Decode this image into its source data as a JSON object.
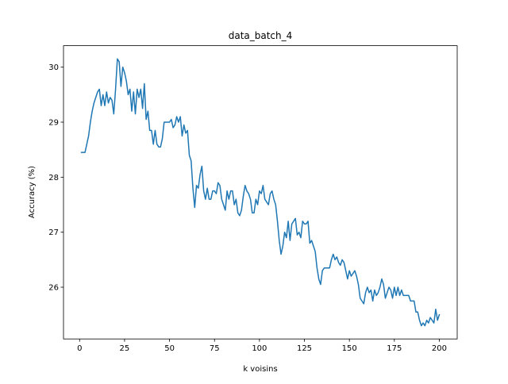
{
  "chart_data": {
    "type": "line",
    "title": "data_batch_4",
    "xlabel": "k voisins",
    "ylabel": "Accuracy (%)",
    "x": [
      1,
      2,
      3,
      4,
      5,
      6,
      7,
      8,
      9,
      10,
      11,
      12,
      13,
      14,
      15,
      16,
      17,
      18,
      19,
      20,
      21,
      22,
      23,
      24,
      25,
      26,
      27,
      28,
      29,
      30,
      31,
      32,
      33,
      34,
      35,
      36,
      37,
      38,
      39,
      40,
      41,
      42,
      43,
      44,
      45,
      46,
      47,
      48,
      49,
      50,
      51,
      52,
      53,
      54,
      55,
      56,
      57,
      58,
      59,
      60,
      61,
      62,
      63,
      64,
      65,
      66,
      67,
      68,
      69,
      70,
      71,
      72,
      73,
      74,
      75,
      76,
      77,
      78,
      79,
      80,
      81,
      82,
      83,
      84,
      85,
      86,
      87,
      88,
      89,
      90,
      91,
      92,
      93,
      94,
      95,
      96,
      97,
      98,
      99,
      100,
      101,
      102,
      103,
      104,
      105,
      106,
      107,
      108,
      109,
      110,
      111,
      112,
      113,
      114,
      115,
      116,
      117,
      118,
      119,
      120,
      121,
      122,
      123,
      124,
      125,
      126,
      127,
      128,
      129,
      130,
      131,
      132,
      133,
      134,
      135,
      136,
      137,
      138,
      139,
      140,
      141,
      142,
      143,
      144,
      145,
      146,
      147,
      148,
      149,
      150,
      151,
      152,
      153,
      154,
      155,
      156,
      157,
      158,
      159,
      160,
      161,
      162,
      163,
      164,
      165,
      166,
      167,
      168,
      169,
      170,
      171,
      172,
      173,
      174,
      175,
      176,
      177,
      178,
      179,
      180,
      181,
      182,
      183,
      184,
      185,
      186,
      187,
      188,
      189,
      190,
      191,
      192,
      193,
      194,
      195,
      196,
      197,
      198,
      199,
      200
    ],
    "series": [
      {
        "name": "Accuracy",
        "color": "#1f77b4",
        "values": [
          28.45,
          28.45,
          28.45,
          28.6,
          28.75,
          29.0,
          29.2,
          29.35,
          29.45,
          29.55,
          29.6,
          29.3,
          29.5,
          29.3,
          29.55,
          29.35,
          29.45,
          29.4,
          29.15,
          29.6,
          30.15,
          30.1,
          29.65,
          30.0,
          29.9,
          29.75,
          29.5,
          29.6,
          29.2,
          29.55,
          29.15,
          29.6,
          29.45,
          29.6,
          29.25,
          29.7,
          29.05,
          29.2,
          28.85,
          28.85,
          28.6,
          28.85,
          28.6,
          28.55,
          28.55,
          28.7,
          29.0,
          29.0,
          29.0,
          29.0,
          29.05,
          28.9,
          28.95,
          29.1,
          29.0,
          29.1,
          28.75,
          28.95,
          28.8,
          28.85,
          28.4,
          28.3,
          27.8,
          27.45,
          27.85,
          27.8,
          28.05,
          28.2,
          27.75,
          27.6,
          27.8,
          27.6,
          27.6,
          27.75,
          27.75,
          27.7,
          27.9,
          27.85,
          27.6,
          27.5,
          27.4,
          27.75,
          27.6,
          27.75,
          27.75,
          27.5,
          27.6,
          27.35,
          27.3,
          27.4,
          27.65,
          27.85,
          27.75,
          27.7,
          27.6,
          27.35,
          27.35,
          27.6,
          27.5,
          27.75,
          27.7,
          27.85,
          27.6,
          27.55,
          27.5,
          27.7,
          27.75,
          27.6,
          27.5,
          27.2,
          26.85,
          26.6,
          26.75,
          27.0,
          26.9,
          27.2,
          26.85,
          27.15,
          27.2,
          27.25,
          26.95,
          27.0,
          26.9,
          27.2,
          27.15,
          27.15,
          27.2,
          26.8,
          26.85,
          26.75,
          26.65,
          26.35,
          26.15,
          26.05,
          26.3,
          26.35,
          26.35,
          26.35,
          26.35,
          26.5,
          26.6,
          26.5,
          26.55,
          26.45,
          26.4,
          26.5,
          26.45,
          26.3,
          26.15,
          26.3,
          26.2,
          26.25,
          26.3,
          26.2,
          26.05,
          25.8,
          25.75,
          25.7,
          25.9,
          26.0,
          25.9,
          25.95,
          25.75,
          25.95,
          25.85,
          25.9,
          26.0,
          26.15,
          26.05,
          25.8,
          25.9,
          26.0,
          25.95,
          25.8,
          26.0,
          25.85,
          26.0,
          25.85,
          25.95,
          25.85,
          25.85,
          25.85,
          25.85,
          25.75,
          25.75,
          25.75,
          25.55,
          25.55,
          25.4,
          25.3,
          25.35,
          25.3,
          25.4,
          25.35,
          25.45,
          25.4,
          25.35,
          25.6,
          25.4,
          25.5
        ]
      }
    ],
    "xlim": [
      -8.95,
      209.95
    ],
    "ylim": [
      25.06,
      30.39
    ],
    "xticks": [
      0,
      25,
      50,
      75,
      100,
      125,
      150,
      175,
      200
    ],
    "yticks": [
      26,
      27,
      28,
      29,
      30
    ]
  }
}
